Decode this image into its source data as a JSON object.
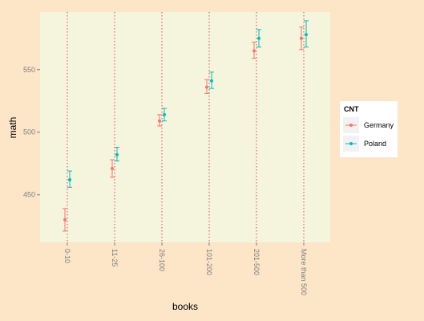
{
  "chart_data": {
    "type": "scatter",
    "xlabel": "books",
    "ylabel": "math",
    "categories": [
      "0-10",
      "11-25",
      "26-100",
      "101-200",
      "201-500",
      "More than 500"
    ],
    "ylim": [
      412,
      596
    ],
    "yticks": [
      450,
      500,
      550
    ],
    "grid": "dotted vertical lines at categories",
    "legend_title": "CNT",
    "legend_position": "right",
    "series": [
      {
        "name": "Germany",
        "color": "#f8766d",
        "values": [
          430,
          471,
          509,
          536,
          565,
          575
        ],
        "lower": [
          421,
          464,
          505,
          531,
          559,
          566
        ],
        "upper": [
          439,
          478,
          514,
          542,
          572,
          584
        ]
      },
      {
        "name": "Poland",
        "color": "#00bfc4",
        "values": [
          462,
          482,
          514,
          541,
          575,
          578
        ],
        "lower": [
          456,
          477,
          509,
          535,
          568,
          568
        ],
        "upper": [
          469,
          488,
          519,
          548,
          582,
          589
        ]
      }
    ]
  }
}
